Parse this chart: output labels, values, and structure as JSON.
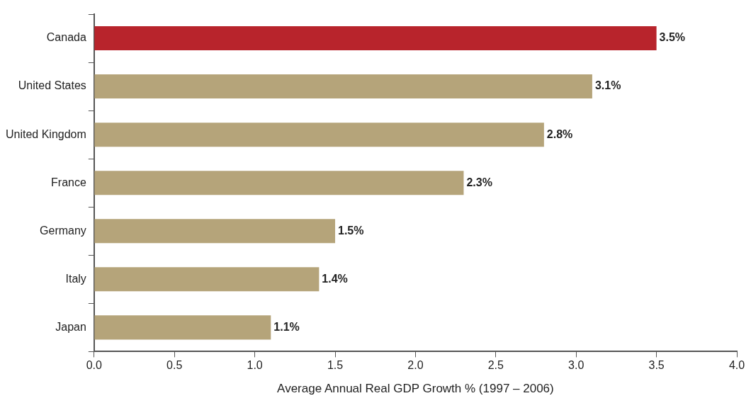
{
  "chart_data": {
    "type": "bar",
    "orientation": "horizontal",
    "xlabel": "Average Annual Real GDP Growth % (1997 – 2006)",
    "categories": [
      "Canada",
      "United States",
      "United Kingdom",
      "France",
      "Germany",
      "Italy",
      "Japan"
    ],
    "values": [
      3.5,
      3.1,
      2.8,
      2.3,
      1.5,
      1.4,
      1.1
    ],
    "colors": [
      "#b8242c",
      "#b5a47a",
      "#b5a47a",
      "#b5a47a",
      "#b5a47a",
      "#b5a47a",
      "#b5a47a"
    ],
    "value_labels": [
      "3.5%",
      "3.1%",
      "2.8%",
      "2.3%",
      "1.5%",
      "1.4%",
      "1.1%"
    ],
    "xlim": [
      0,
      4
    ],
    "xticks": [
      {
        "value": 0,
        "label": "0.0"
      },
      {
        "value": 0.5,
        "label": "0.5"
      },
      {
        "value": 1,
        "label": "1.0"
      },
      {
        "value": 1.5,
        "label": "1.5"
      },
      {
        "value": 2,
        "label": "2.0"
      },
      {
        "value": 2.5,
        "label": "2.5"
      },
      {
        "value": 3,
        "label": "3.0"
      },
      {
        "value": 3.5,
        "label": "3.5"
      },
      {
        "value": 4,
        "label": "4.0"
      }
    ],
    "legend": false
  }
}
